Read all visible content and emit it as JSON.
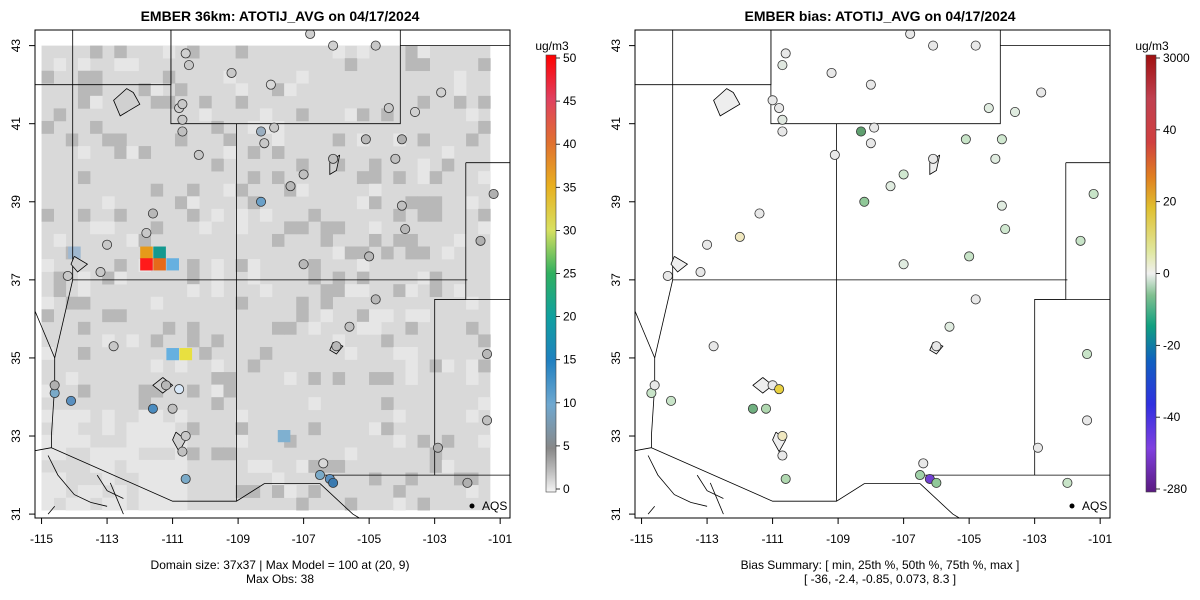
{
  "left": {
    "title": "EMBER 36km: ATOTIJ_AVG on 04/17/2024",
    "footer1": "Domain size: 37x37 | Max Model = 100 at (20, 9)",
    "footer2": "Max Obs: 38",
    "colorbar_title": "ug/m3",
    "colorbar_ticks": [
      "50",
      "45",
      "40",
      "35",
      "30",
      "25",
      "20",
      "15",
      "10",
      "5",
      "0"
    ],
    "legend": "AQS"
  },
  "right": {
    "title": "EMBER bias: ATOTIJ_AVG on 04/17/2024",
    "footer1": "Bias Summary: [ min, 25th %, 50th %, 75th %, max ]",
    "footer2": "[ -36,   -2.4,   -0.85,   0.073,   8.3 ]",
    "colorbar_title": "ug/m3",
    "colorbar_ticks": [
      "3000",
      "40",
      "20",
      "0",
      "-20",
      "-40",
      "-280"
    ],
    "legend": "AQS"
  },
  "axes": {
    "x_ticks": [
      "-115",
      "-113",
      "-111",
      "-109",
      "-107",
      "-105",
      "-103",
      "-101"
    ],
    "y_ticks": [
      "31",
      "33",
      "35",
      "37",
      "39",
      "41",
      "43"
    ]
  },
  "colors": {
    "grid_bg": "#d9d9d9",
    "grid_dark": "#b8b8b8",
    "grid_light": "#e6e6e6"
  },
  "map_data": {
    "hot_cells": [
      {
        "lon": -111.8,
        "lat": 37.7,
        "color": "#e69a1a"
      },
      {
        "lon": -111.4,
        "lat": 37.7,
        "color": "#14998f"
      },
      {
        "lon": -111.8,
        "lat": 37.4,
        "color": "#ff1a1a"
      },
      {
        "lon": -111.4,
        "lat": 37.4,
        "color": "#e66a1a"
      },
      {
        "lon": -111.0,
        "lat": 37.4,
        "color": "#66b0e0"
      },
      {
        "lon": -111.0,
        "lat": 35.1,
        "color": "#66b0e0"
      },
      {
        "lon": -110.6,
        "lat": 35.1,
        "color": "#e8e040"
      },
      {
        "lon": -107.6,
        "lat": 33.0,
        "color": "#7fb0d0"
      },
      {
        "lon": -114.0,
        "lat": 37.7,
        "color": "#9fb8d0"
      }
    ],
    "left_sites": [
      {
        "lon": -110.5,
        "lat": 42.5,
        "c": "#c8c8c8"
      },
      {
        "lon": -110.6,
        "lat": 42.8,
        "c": "#d0d0d0"
      },
      {
        "lon": -110.8,
        "lat": 41.4,
        "c": "#d0d0d0"
      },
      {
        "lon": -110.7,
        "lat": 41.1,
        "c": "#c8c8c8"
      },
      {
        "lon": -110.7,
        "lat": 40.8,
        "c": "#c0c0c0"
      },
      {
        "lon": -108.3,
        "lat": 40.8,
        "c": "#9aaec0"
      },
      {
        "lon": -107.9,
        "lat": 40.9,
        "c": "#c8c8c8"
      },
      {
        "lon": -110.2,
        "lat": 40.2,
        "c": "#c8c8c8"
      },
      {
        "lon": -110.7,
        "lat": 41.5,
        "c": "#c8c8c8"
      },
      {
        "lon": -109.2,
        "lat": 42.3,
        "c": "#c8c8c8"
      },
      {
        "lon": -108.0,
        "lat": 42.0,
        "c": "#d8d8d8"
      },
      {
        "lon": -106.8,
        "lat": 43.3,
        "c": "#d0d0d0"
      },
      {
        "lon": -106.1,
        "lat": 43.0,
        "c": "#d0d0d0"
      },
      {
        "lon": -104.8,
        "lat": 43.0,
        "c": "#c8c8c8"
      },
      {
        "lon": -104.4,
        "lat": 41.4,
        "c": "#c8c8c8"
      },
      {
        "lon": -103.6,
        "lat": 41.3,
        "c": "#d0d0d0"
      },
      {
        "lon": -102.8,
        "lat": 41.8,
        "c": "#d0d0d0"
      },
      {
        "lon": -104.0,
        "lat": 40.6,
        "c": "#b0b0b0"
      },
      {
        "lon": -104.2,
        "lat": 40.1,
        "c": "#c0c0c0"
      },
      {
        "lon": -105.1,
        "lat": 40.6,
        "c": "#b8b8b8"
      },
      {
        "lon": -104.0,
        "lat": 38.9,
        "c": "#c0c0c0"
      },
      {
        "lon": -103.9,
        "lat": 38.3,
        "c": "#b8b8b8"
      },
      {
        "lon": -101.2,
        "lat": 39.2,
        "c": "#b0b0b0"
      },
      {
        "lon": -101.6,
        "lat": 38.0,
        "c": "#b0b0b0"
      },
      {
        "lon": -107.0,
        "lat": 39.7,
        "c": "#c0c0c0"
      },
      {
        "lon": -107.4,
        "lat": 39.4,
        "c": "#b8b8b8"
      },
      {
        "lon": -108.3,
        "lat": 39.0,
        "c": "#6aa0c8"
      },
      {
        "lon": -108.2,
        "lat": 40.5,
        "c": "#c8c8c8"
      },
      {
        "lon": -105.0,
        "lat": 37.6,
        "c": "#b8b8b8"
      },
      {
        "lon": -107.0,
        "lat": 37.4,
        "c": "#b8b8b8"
      },
      {
        "lon": -104.8,
        "lat": 36.5,
        "c": "#b8b8b8"
      },
      {
        "lon": -105.6,
        "lat": 35.8,
        "c": "#c0c0c0"
      },
      {
        "lon": -106.0,
        "lat": 35.3,
        "c": "#b8b8b8"
      },
      {
        "lon": -111.6,
        "lat": 38.7,
        "c": "#b8b8b8"
      },
      {
        "lon": -111.8,
        "lat": 38.2,
        "c": "#c8c8c8"
      },
      {
        "lon": -113.0,
        "lat": 37.9,
        "c": "#c8c8c8"
      },
      {
        "lon": -112.8,
        "lat": 35.3,
        "c": "#c8c8c8"
      },
      {
        "lon": -111.2,
        "lat": 34.3,
        "c": "#b8b8b8"
      },
      {
        "lon": -111.6,
        "lat": 33.7,
        "c": "#4a8cc0"
      },
      {
        "lon": -110.8,
        "lat": 34.2,
        "c": "#d8e8f8"
      },
      {
        "lon": -111.0,
        "lat": 33.7,
        "c": "#c0c0c0"
      },
      {
        "lon": -110.6,
        "lat": 33.0,
        "c": "#c8c8c8"
      },
      {
        "lon": -110.7,
        "lat": 32.6,
        "c": "#c0c0c0"
      },
      {
        "lon": -110.6,
        "lat": 31.9,
        "c": "#7aaac8"
      },
      {
        "lon": -114.6,
        "lat": 34.1,
        "c": "#7aaac8"
      },
      {
        "lon": -114.6,
        "lat": 34.3,
        "c": "#b0b0b0"
      },
      {
        "lon": -114.1,
        "lat": 33.9,
        "c": "#5a90c0"
      },
      {
        "lon": -114.2,
        "lat": 37.1,
        "c": "#c8c8c8"
      },
      {
        "lon": -113.2,
        "lat": 37.2,
        "c": "#c8c8c8"
      },
      {
        "lon": -106.4,
        "lat": 32.3,
        "c": "#d8d8d8"
      },
      {
        "lon": -106.5,
        "lat": 32.0,
        "c": "#7aaac8"
      },
      {
        "lon": -106.2,
        "lat": 31.9,
        "c": "#5a90c0"
      },
      {
        "lon": -106.1,
        "lat": 31.8,
        "c": "#3a7ab0"
      },
      {
        "lon": -102.9,
        "lat": 32.7,
        "c": "#b0b0b0"
      },
      {
        "lon": -102.0,
        "lat": 31.8,
        "c": "#b0b0b0"
      },
      {
        "lon": -101.4,
        "lat": 33.4,
        "c": "#c0c0c0"
      },
      {
        "lon": -101.4,
        "lat": 35.1,
        "c": "#b8b8b8"
      },
      {
        "lon": -106.1,
        "lat": 40.1,
        "c": "#c0c0c0"
      }
    ],
    "right_sites": [
      {
        "lon": -110.6,
        "lat": 42.8,
        "c": "#e8e8e8"
      },
      {
        "lon": -110.7,
        "lat": 42.5,
        "c": "#e0e8e0"
      },
      {
        "lon": -110.8,
        "lat": 41.4,
        "c": "#e8e8e8"
      },
      {
        "lon": -110.7,
        "lat": 41.1,
        "c": "#e0e8e0"
      },
      {
        "lon": -110.7,
        "lat": 40.8,
        "c": "#e8e8e8"
      },
      {
        "lon": -108.3,
        "lat": 40.8,
        "c": "#60a070"
      },
      {
        "lon": -107.9,
        "lat": 40.9,
        "c": "#e8e8e8"
      },
      {
        "lon": -109.1,
        "lat": 40.2,
        "c": "#e8e8e8"
      },
      {
        "lon": -111.0,
        "lat": 41.6,
        "c": "#e8e8e8"
      },
      {
        "lon": -109.2,
        "lat": 42.3,
        "c": "#e8e8e8"
      },
      {
        "lon": -108.0,
        "lat": 42.0,
        "c": "#e8e8e8"
      },
      {
        "lon": -106.8,
        "lat": 43.3,
        "c": "#e8e8e8"
      },
      {
        "lon": -106.1,
        "lat": 43.0,
        "c": "#e8e8e8"
      },
      {
        "lon": -104.8,
        "lat": 43.0,
        "c": "#e8e8e8"
      },
      {
        "lon": -104.4,
        "lat": 41.4,
        "c": "#e0ece0"
      },
      {
        "lon": -103.6,
        "lat": 41.3,
        "c": "#e0ece0"
      },
      {
        "lon": -102.8,
        "lat": 41.8,
        "c": "#e8e8e8"
      },
      {
        "lon": -104.0,
        "lat": 40.6,
        "c": "#d0e8d0"
      },
      {
        "lon": -104.2,
        "lat": 40.1,
        "c": "#e0ece0"
      },
      {
        "lon": -105.1,
        "lat": 40.6,
        "c": "#c8e4c8"
      },
      {
        "lon": -104.0,
        "lat": 38.9,
        "c": "#e0ece0"
      },
      {
        "lon": -103.9,
        "lat": 38.3,
        "c": "#d0e8d0"
      },
      {
        "lon": -101.2,
        "lat": 39.2,
        "c": "#c8e4c8"
      },
      {
        "lon": -101.6,
        "lat": 38.0,
        "c": "#c8e4c8"
      },
      {
        "lon": -107.0,
        "lat": 39.7,
        "c": "#d0e8d0"
      },
      {
        "lon": -107.4,
        "lat": 39.4,
        "c": "#e0ece0"
      },
      {
        "lon": -108.2,
        "lat": 39.0,
        "c": "#90c898"
      },
      {
        "lon": -108.0,
        "lat": 40.5,
        "c": "#e8e8e8"
      },
      {
        "lon": -105.0,
        "lat": 37.6,
        "c": "#c8e4c8"
      },
      {
        "lon": -107.0,
        "lat": 37.4,
        "c": "#e0ece0"
      },
      {
        "lon": -104.8,
        "lat": 36.5,
        "c": "#e8e8e8"
      },
      {
        "lon": -105.6,
        "lat": 35.8,
        "c": "#e0ece0"
      },
      {
        "lon": -106.0,
        "lat": 35.3,
        "c": "#e8e8e8"
      },
      {
        "lon": -111.4,
        "lat": 38.7,
        "c": "#e8e8e8"
      },
      {
        "lon": -112.0,
        "lat": 38.1,
        "c": "#f0e8c0"
      },
      {
        "lon": -113.0,
        "lat": 37.9,
        "c": "#e8e8e8"
      },
      {
        "lon": -112.8,
        "lat": 35.3,
        "c": "#e8e8e8"
      },
      {
        "lon": -111.0,
        "lat": 34.3,
        "c": "#e8e8e8"
      },
      {
        "lon": -111.6,
        "lat": 33.7,
        "c": "#70b080"
      },
      {
        "lon": -110.8,
        "lat": 34.2,
        "c": "#e8d040"
      },
      {
        "lon": -111.2,
        "lat": 33.7,
        "c": "#b0d8b0"
      },
      {
        "lon": -110.7,
        "lat": 33.0,
        "c": "#f0e8c0"
      },
      {
        "lon": -110.7,
        "lat": 32.5,
        "c": "#e8e8e8"
      },
      {
        "lon": -110.6,
        "lat": 31.9,
        "c": "#b0d8b0"
      },
      {
        "lon": -114.7,
        "lat": 34.1,
        "c": "#c8e4c8"
      },
      {
        "lon": -114.6,
        "lat": 34.3,
        "c": "#e8e8e8"
      },
      {
        "lon": -114.1,
        "lat": 33.9,
        "c": "#c8e4c8"
      },
      {
        "lon": -114.2,
        "lat": 37.1,
        "c": "#e8e8e8"
      },
      {
        "lon": -113.2,
        "lat": 37.2,
        "c": "#e8e8e8"
      },
      {
        "lon": -106.4,
        "lat": 32.3,
        "c": "#e8e8e8"
      },
      {
        "lon": -106.5,
        "lat": 32.0,
        "c": "#a0d0a8"
      },
      {
        "lon": -106.2,
        "lat": 31.9,
        "c": "#7040d0"
      },
      {
        "lon": -106.0,
        "lat": 31.8,
        "c": "#90c898"
      },
      {
        "lon": -102.9,
        "lat": 32.7,
        "c": "#e8e8e8"
      },
      {
        "lon": -102.0,
        "lat": 31.8,
        "c": "#c8e4c8"
      },
      {
        "lon": -101.4,
        "lat": 33.4,
        "c": "#e8e8e8"
      },
      {
        "lon": -101.4,
        "lat": 35.1,
        "c": "#c8e4c8"
      },
      {
        "lon": -106.1,
        "lat": 40.1,
        "c": "#e8e8e8"
      }
    ]
  }
}
